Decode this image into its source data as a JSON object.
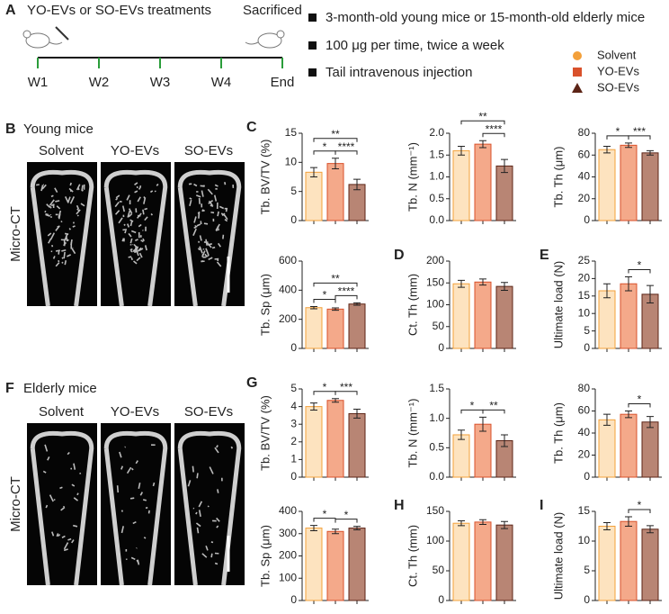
{
  "panel_a": {
    "label": "A",
    "treatment": "YO-EVs or SO-EVs treatments",
    "end_label": "Sacrificed",
    "timepoints": [
      "W1",
      "W2",
      "W3",
      "W4",
      "End"
    ],
    "notes": [
      "3-month-old young mice or 15-month-old elderly mice",
      "100 μg per time, twice a week",
      "Tail intravenous injection"
    ]
  },
  "legend": [
    {
      "name": "Solvent",
      "color": "#f3a03a",
      "fill": "#fde3bf"
    },
    {
      "name": "YO-EVs",
      "color": "#d9512b",
      "fill": "#f4a98a"
    },
    {
      "name": "SO-EVs",
      "color": "#5c2416",
      "fill": "#b88574"
    }
  ],
  "panel_b": {
    "label": "B",
    "title": "Young mice",
    "groups": [
      "Solvent",
      "YO-EVs",
      "SO-EVs"
    ],
    "ylabel": "Micro-CT"
  },
  "panel_f": {
    "label": "F",
    "title": "Elderly mice",
    "groups": [
      "Solvent",
      "YO-EVs",
      "SO-EVs"
    ],
    "ylabel": "Micro-CT"
  },
  "chart_data": [
    {
      "type": "bar",
      "panel": "C",
      "ylabel": "Tb. BV/TV (%)",
      "ylim": [
        0,
        15
      ],
      "yticks": [
        0,
        5,
        10,
        15
      ],
      "values": [
        8.3,
        9.8,
        6.2
      ],
      "errors": [
        0.8,
        0.9,
        0.9
      ],
      "significance": [
        {
          "from": 0,
          "to": 1,
          "label": "*"
        },
        {
          "from": 1,
          "to": 2,
          "label": "****"
        },
        {
          "from": 0,
          "to": 2,
          "label": "**"
        }
      ]
    },
    {
      "type": "bar",
      "ylabel": "Tb. N (mm⁻¹)",
      "ylim": [
        0,
        2
      ],
      "yticks": [
        {
          "value": 0,
          "label": "0.0"
        },
        {
          "value": 0.5,
          "label": "0.5"
        },
        {
          "value": 1,
          "label": "1.0"
        },
        {
          "value": 1.5,
          "label": "1.5"
        },
        {
          "value": 2,
          "label": "2.0"
        }
      ],
      "values": [
        1.6,
        1.75,
        1.25
      ],
      "errors": [
        0.1,
        0.08,
        0.15
      ],
      "significance": [
        {
          "from": 1,
          "to": 2,
          "label": "****"
        },
        {
          "from": 0,
          "to": 2,
          "label": "**"
        }
      ]
    },
    {
      "type": "bar",
      "ylabel": "Tb. Th (μm)",
      "ylim": [
        0,
        80
      ],
      "yticks": [
        0,
        20,
        40,
        60,
        80
      ],
      "values": [
        65,
        69,
        62
      ],
      "errors": [
        3,
        2,
        2
      ],
      "significance": [
        {
          "from": 0,
          "to": 1,
          "label": "*"
        },
        {
          "from": 1,
          "to": 2,
          "label": "***"
        }
      ]
    },
    {
      "type": "bar",
      "ylabel": "Tb. Sp (μm)",
      "ylim": [
        0,
        600
      ],
      "yticks": [
        0,
        200,
        400,
        600
      ],
      "values": [
        280,
        270,
        305
      ],
      "errors": [
        8,
        8,
        8
      ],
      "significance": [
        {
          "from": 0,
          "to": 1,
          "label": "*"
        },
        {
          "from": 1,
          "to": 2,
          "label": "****"
        },
        {
          "from": 0,
          "to": 2,
          "label": "**"
        }
      ]
    },
    {
      "type": "bar",
      "panel": "D",
      "ylabel": "Ct. Th (mm)",
      "ylim": [
        0,
        200
      ],
      "yticks": [
        0,
        50,
        100,
        150,
        200
      ],
      "values": [
        148,
        152,
        142
      ],
      "errors": [
        8,
        7,
        9
      ],
      "significance": []
    },
    {
      "type": "bar",
      "panel": "E",
      "ylabel": "Ultimate load (N)",
      "ylim": [
        0,
        25
      ],
      "yticks": [
        0,
        5,
        10,
        15,
        20,
        25
      ],
      "values": [
        16.5,
        18.5,
        15.5
      ],
      "errors": [
        2,
        2,
        2.5
      ],
      "significance": [
        {
          "from": 1,
          "to": 2,
          "label": "*"
        }
      ]
    },
    {
      "type": "bar",
      "panel": "G",
      "ylabel": "Tb. BV/TV (%)",
      "ylim": [
        0,
        5
      ],
      "yticks": [
        0,
        1,
        2,
        3,
        4,
        5
      ],
      "values": [
        4.0,
        4.35,
        3.6
      ],
      "errors": [
        0.2,
        0.1,
        0.25
      ],
      "significance": [
        {
          "from": 0,
          "to": 1,
          "label": "*"
        },
        {
          "from": 1,
          "to": 2,
          "label": "***"
        }
      ]
    },
    {
      "type": "bar",
      "ylabel": "Tb. N (mm⁻¹)",
      "ylim": [
        0,
        1.5
      ],
      "yticks": [
        {
          "value": 0,
          "label": "0.0"
        },
        {
          "value": 0.5,
          "label": "0.5"
        },
        {
          "value": 1,
          "label": "1.0"
        },
        {
          "value": 1.5,
          "label": "1.5"
        }
      ],
      "values": [
        0.72,
        0.9,
        0.62
      ],
      "errors": [
        0.08,
        0.12,
        0.1
      ],
      "significance": [
        {
          "from": 0,
          "to": 1,
          "label": "*"
        },
        {
          "from": 1,
          "to": 2,
          "label": "**"
        }
      ]
    },
    {
      "type": "bar",
      "ylabel": "Tb. Th (μm)",
      "ylim": [
        0,
        80
      ],
      "yticks": [
        0,
        20,
        40,
        60,
        80
      ],
      "values": [
        52,
        57,
        50
      ],
      "errors": [
        5,
        3,
        5
      ],
      "significance": [
        {
          "from": 1,
          "to": 2,
          "label": "*"
        }
      ]
    },
    {
      "type": "bar",
      "ylabel": "Tb. Sp (μm)",
      "ylim": [
        0,
        400
      ],
      "yticks": [
        0,
        100,
        200,
        300,
        400
      ],
      "values": [
        325,
        310,
        325
      ],
      "errors": [
        12,
        10,
        8
      ],
      "significance": [
        {
          "from": 0,
          "to": 1,
          "label": "*"
        },
        {
          "from": 1,
          "to": 2,
          "label": "*"
        }
      ]
    },
    {
      "type": "bar",
      "panel": "H",
      "ylabel": "Ct. Th (mm)",
      "ylim": [
        0,
        150
      ],
      "yticks": [
        0,
        50,
        100,
        150
      ],
      "values": [
        130,
        132,
        127
      ],
      "errors": [
        4,
        4,
        6
      ],
      "significance": []
    },
    {
      "type": "bar",
      "panel": "I",
      "ylabel": "Ultimate load (N)",
      "ylim": [
        0,
        15
      ],
      "yticks": [
        0,
        5,
        10,
        15
      ],
      "values": [
        12.5,
        13.3,
        12.0
      ],
      "errors": [
        0.6,
        0.8,
        0.6
      ],
      "significance": [
        {
          "from": 1,
          "to": 2,
          "label": "*"
        }
      ]
    }
  ]
}
